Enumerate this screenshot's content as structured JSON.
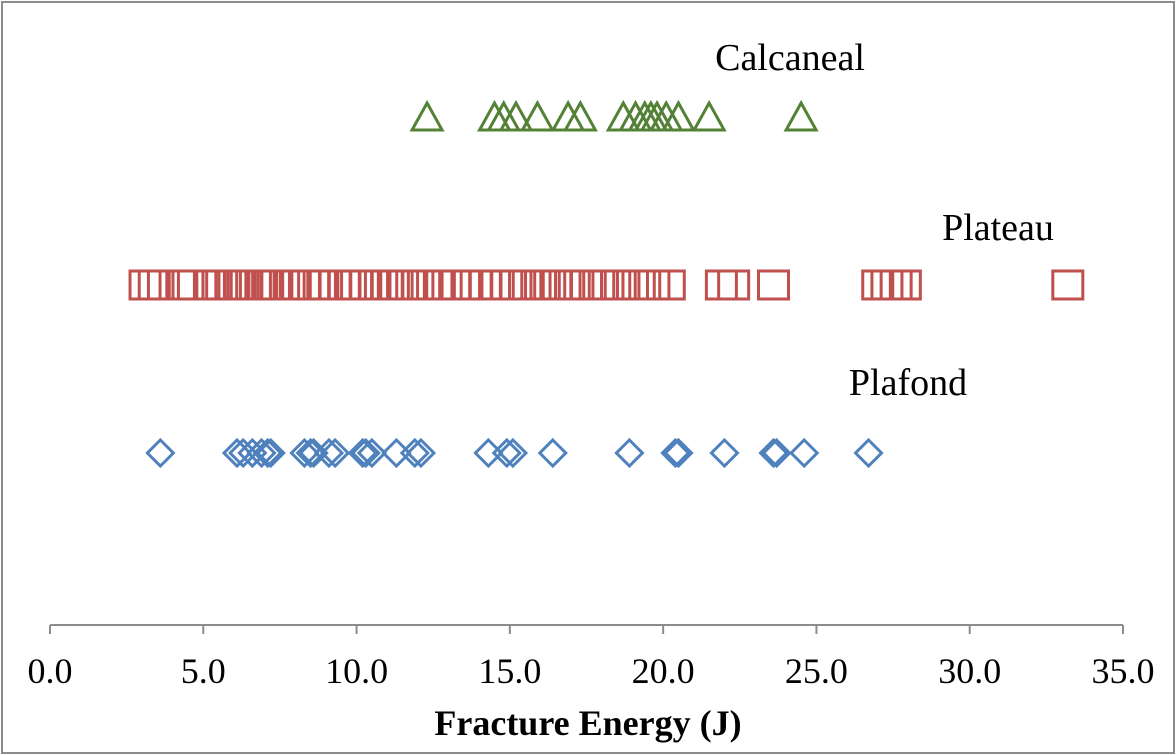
{
  "chart_data": {
    "type": "scatter",
    "xlabel": "Fracture Energy (J)",
    "ylabel": "",
    "xlim": [
      0,
      35
    ],
    "x_ticks": [
      "0.0",
      "5.0",
      "10.0",
      "15.0",
      "20.0",
      "25.0",
      "30.0",
      "35.0"
    ],
    "grid": false,
    "series": [
      {
        "name": "Calcaneal",
        "marker": "triangle",
        "color": "#538135",
        "values": [
          12.3,
          14.5,
          14.8,
          15.2,
          15.9,
          16.9,
          17.3,
          18.7,
          19.1,
          19.4,
          19.6,
          19.8,
          20.1,
          20.5,
          21.5,
          24.5
        ]
      },
      {
        "name": "Plateau",
        "marker": "square",
        "color": "#C0504D",
        "values": [
          3.1,
          3.4,
          3.7,
          4.3,
          4.5,
          5.2,
          5.6,
          5.9,
          6.0,
          6.2,
          6.3,
          6.4,
          6.7,
          6.9,
          7.1,
          7.4,
          7.8,
          8.0,
          8.3,
          8.6,
          8.9,
          9.3,
          9.6,
          9.8,
          10.0,
          10.3,
          10.6,
          11.0,
          11.2,
          11.5,
          11.8,
          12.0,
          12.3,
          12.7,
          13.2,
          13.6,
          13.9,
          14.2,
          14.5,
          14.9,
          15.2,
          15.6,
          16.0,
          16.3,
          16.5,
          16.8,
          17.1,
          17.5,
          17.9,
          18.2,
          18.6,
          19.0,
          19.4,
          19.7,
          20.2,
          21.9,
          22.3,
          23.6,
          27.0,
          27.3,
          27.6,
          27.9,
          33.2
        ]
      },
      {
        "name": "Plafond",
        "marker": "diamond",
        "color": "#4F81BD",
        "values": [
          3.6,
          6.1,
          6.3,
          6.6,
          6.9,
          7.1,
          7.2,
          8.3,
          8.5,
          8.6,
          9.1,
          9.3,
          10.2,
          10.3,
          10.5,
          11.3,
          11.9,
          12.1,
          14.3,
          14.9,
          15.1,
          16.4,
          18.9,
          20.4,
          20.5,
          22.0,
          23.6,
          23.7,
          24.6,
          26.7
        ]
      }
    ]
  }
}
